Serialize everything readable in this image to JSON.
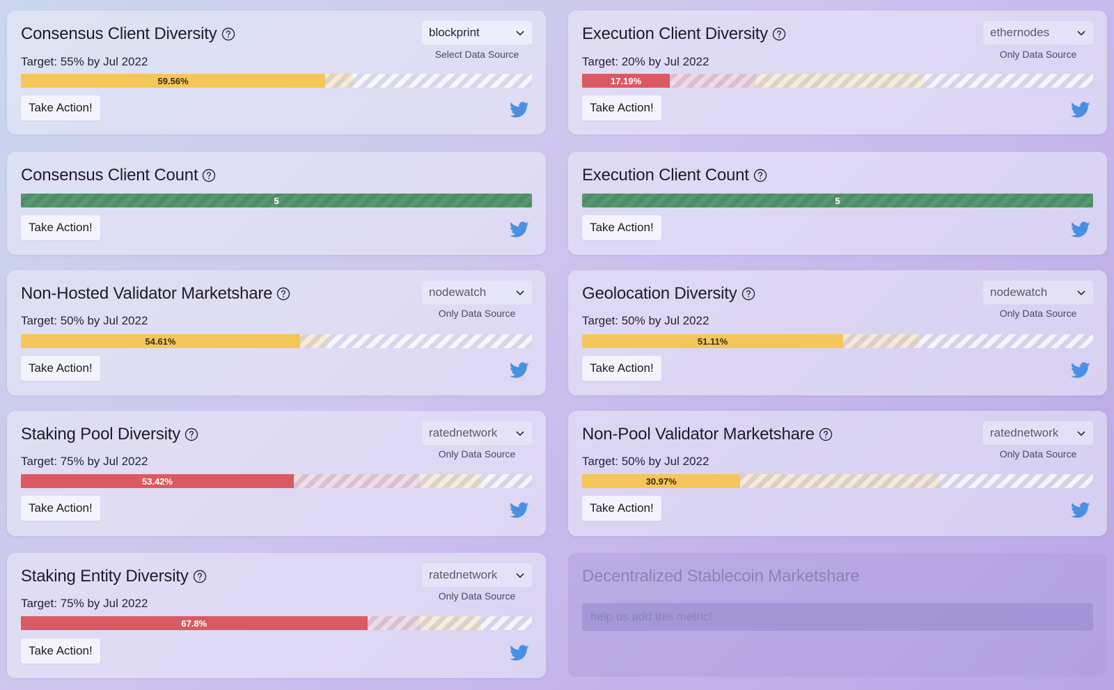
{
  "cards": [
    {
      "title": "Consensus Client Diversity",
      "target": "Target: 55% by Jul 2022",
      "source": "blockprint",
      "source_label": "Select Data Source",
      "value_label": "59.56%",
      "fill_percent": 59.56,
      "fill_color": "yellow",
      "button": "Take Action!"
    },
    {
      "title": "Execution Client Diversity",
      "target": "Target: 20% by Jul 2022",
      "source": "ethernodes",
      "source_label": "Only Data Source",
      "value_label": "17.19%",
      "fill_percent": 17.19,
      "fill_color": "red",
      "button": "Take Action!"
    },
    {
      "title": "Consensus Client Count",
      "value_label": "5",
      "fill_percent": 100,
      "fill_color": "green",
      "button": "Take Action!"
    },
    {
      "title": "Execution Client Count",
      "value_label": "5",
      "fill_percent": 100,
      "fill_color": "green",
      "button": "Take Action!"
    },
    {
      "title": "Non-Hosted Validator Marketshare",
      "target": "Target: 50% by Jul 2022",
      "source": "nodewatch",
      "source_label": "Only Data Source",
      "value_label": "54.61%",
      "fill_percent": 54.61,
      "fill_color": "yellow",
      "button": "Take Action!"
    },
    {
      "title": "Geolocation Diversity",
      "target": "Target: 50% by Jul 2022",
      "source": "nodewatch",
      "source_label": "Only Data Source",
      "value_label": "51.11%",
      "fill_percent": 51.11,
      "fill_color": "yellow",
      "button": "Take Action!"
    },
    {
      "title": "Staking Pool Diversity",
      "target": "Target: 75% by Jul 2022",
      "source": "ratednetwork",
      "source_label": "Only Data Source",
      "value_label": "53.42%",
      "fill_percent": 53.42,
      "fill_color": "red",
      "button": "Take Action!"
    },
    {
      "title": "Non-Pool Validator Marketshare",
      "target": "Target: 50% by Jul 2022",
      "source": "ratednetwork",
      "source_label": "Only Data Source",
      "value_label": "30.97%",
      "fill_percent": 30.97,
      "fill_color": "yellow",
      "button": "Take Action!"
    },
    {
      "title": "Staking Entity Diversity",
      "target": "Target: 75% by Jul 2022",
      "source": "ratednetwork",
      "source_label": "Only Data Source",
      "value_label": "67.8%",
      "fill_percent": 67.8,
      "fill_color": "red",
      "button": "Take Action!"
    }
  ],
  "placeholder": {
    "title": "Decentralized Stablecoin Marketshare",
    "input_placeholder": "help us add this metric!"
  },
  "colors": {
    "yellow": "#f5c65a",
    "red": "#d95a63",
    "green": "#5a9770",
    "twitter": "#4a90e2"
  },
  "icons": {
    "help": "question-circle-icon",
    "dropdown": "chevron-down-icon",
    "share": "twitter-icon"
  }
}
